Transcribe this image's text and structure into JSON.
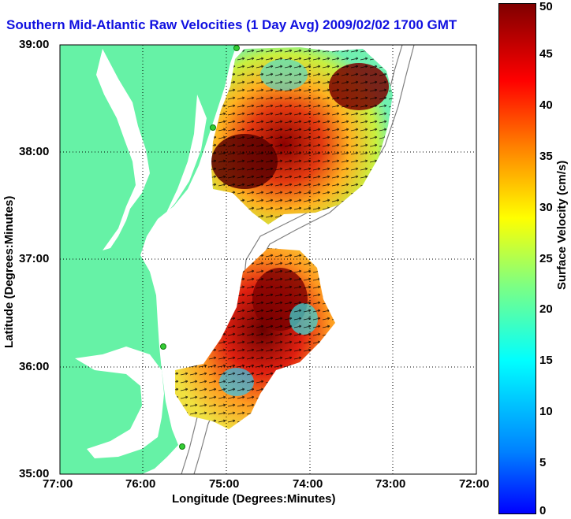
{
  "title": "Southern Mid-Atlantic Raw Velocities (1 Day Avg) 2009/02/02 1700 GMT",
  "axes": {
    "xlabel": "Longitude (Degrees:Minutes)",
    "ylabel": "Latitude (Degrees:Minutes)",
    "x_ticks": [
      "77:00",
      "76:00",
      "75:00",
      "74:00",
      "73:00",
      "72:00"
    ],
    "y_ticks": [
      "39:00",
      "38:00",
      "37:00",
      "36:00",
      "35:00"
    ],
    "grid": "dotted"
  },
  "colorbar": {
    "label": "Surface Velocity (cm/s)",
    "ticks": [
      "0",
      "5",
      "10",
      "15",
      "20",
      "25",
      "30",
      "35",
      "40",
      "45",
      "50"
    ],
    "min": 0,
    "max": 50,
    "colormap": "jet"
  },
  "colors": {
    "land": "#66f2a6",
    "water": "#ffffff",
    "bathymetry": "#808080",
    "station": "#33cc33",
    "title": "#1010e0"
  }
}
